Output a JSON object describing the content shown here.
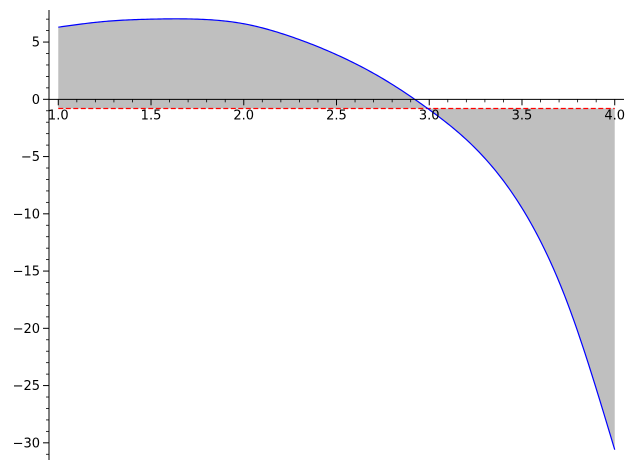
{
  "chart_data": {
    "type": "area",
    "title": "",
    "xlabel": "",
    "ylabel": "",
    "xlim": [
      0.95,
      4.05
    ],
    "ylim": [
      -31.5,
      7.8
    ],
    "grid": false,
    "x_ticks": [
      1.0,
      1.5,
      2.0,
      2.5,
      3.0,
      3.5,
      4.0
    ],
    "x_tick_labels": [
      "1.0",
      "1.5",
      "2.0",
      "2.5",
      "3.0",
      "3.5",
      "4.0"
    ],
    "y_ticks": [
      5,
      0,
      -5,
      -10,
      -15,
      -20,
      -25,
      -30
    ],
    "y_tick_labels": [
      "5",
      "0",
      "−5",
      "−10",
      "−15",
      "−20",
      "−25",
      "−30"
    ],
    "x_minor_step": 0.1,
    "y_minor_step": 1,
    "curve": {
      "color": "#0000ff",
      "x": [
        1.0,
        1.25,
        1.5,
        1.75,
        2.0,
        2.25,
        2.5,
        2.75,
        3.0,
        3.25,
        3.5,
        3.75,
        4.0
      ],
      "y": [
        6.3,
        6.8,
        7.0,
        7.0,
        6.6,
        5.5,
        3.9,
        1.8,
        -0.9,
        -4.3,
        -9.5,
        -18.0,
        -30.6
      ]
    },
    "reference_line": {
      "y": -0.8,
      "color": "#ff0000",
      "style": "dashed"
    },
    "fill_between": {
      "color": "#bfbfbf",
      "between": "curve and reference_line",
      "x_range": [
        1.0,
        4.0
      ]
    }
  }
}
